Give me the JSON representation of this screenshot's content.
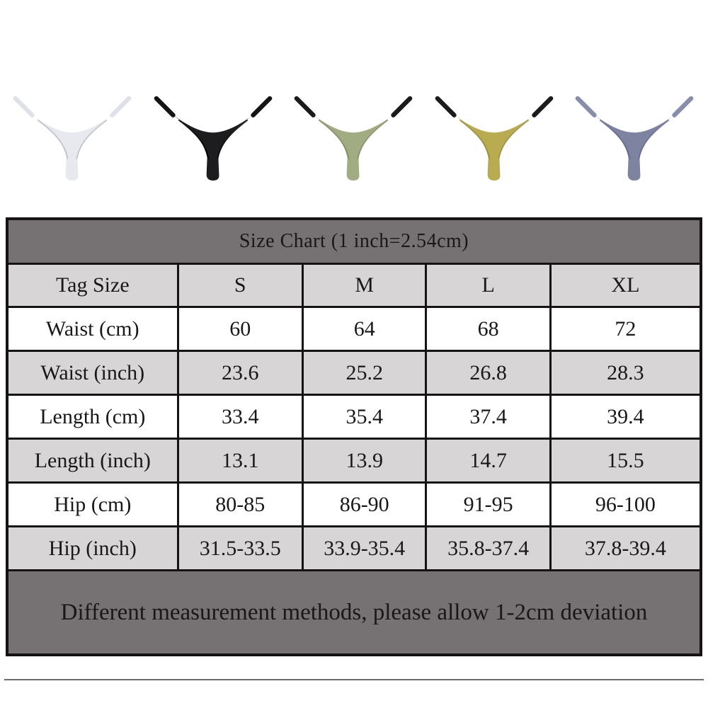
{
  "page": {
    "background": "#ffffff"
  },
  "products": {
    "items": [
      {
        "id": "thong-white",
        "color_name": "white",
        "body_color": "#e8e9ee",
        "seam_color": "#b9bcc8",
        "strap_color": "#dfe1e8"
      },
      {
        "id": "thong-black",
        "color_name": "black",
        "body_color": "#1d1d1f",
        "seam_color": "#000000",
        "strap_color": "#141415"
      },
      {
        "id": "thong-sage-green",
        "color_name": "sage-green",
        "body_color": "#a2ac82",
        "seam_color": "#7e8a60",
        "strap_color": "#1b1b1b"
      },
      {
        "id": "thong-mustard-yellow",
        "color_name": "mustard-yellow",
        "body_color": "#b9ab4f",
        "seam_color": "#968b38",
        "strap_color": "#1b1b1b"
      },
      {
        "id": "thong-blue-purple",
        "color_name": "blue-purple",
        "body_color": "#7e83a2",
        "seam_color": "#616687",
        "strap_color": "#888daa"
      }
    ]
  },
  "size_chart": {
    "title": "Size Chart (1 inch=2.54cm)",
    "columns": [
      "Tag Size",
      "S",
      "M",
      "L",
      "XL"
    ],
    "rows": [
      {
        "label": "Waist (cm)",
        "values": [
          "60",
          "64",
          "68",
          "72"
        ]
      },
      {
        "label": "Waist (inch)",
        "values": [
          "23.6",
          "25.2",
          "26.8",
          "28.3"
        ]
      },
      {
        "label": "Length (cm)",
        "values": [
          "33.4",
          "35.4",
          "37.4",
          "39.4"
        ]
      },
      {
        "label": "Length (inch)",
        "values": [
          "13.1",
          "13.9",
          "14.7",
          "15.5"
        ]
      },
      {
        "label": "Hip (cm)",
        "values": [
          "80-85",
          "86-90",
          "91-95",
          "96-100"
        ]
      },
      {
        "label": "Hip (inch)",
        "values": [
          "31.5-33.5",
          "33.9-35.4",
          "35.8-37.4",
          "37.8-39.4"
        ]
      }
    ],
    "footnote": "Different measurement methods, please allow 1-2cm deviation",
    "colors": {
      "dark_band_bg": "#767173",
      "light_band_bg": "#d7d5d6",
      "white_row_bg": "#ffffff",
      "border": "#161314",
      "text": "#1a1718"
    }
  }
}
